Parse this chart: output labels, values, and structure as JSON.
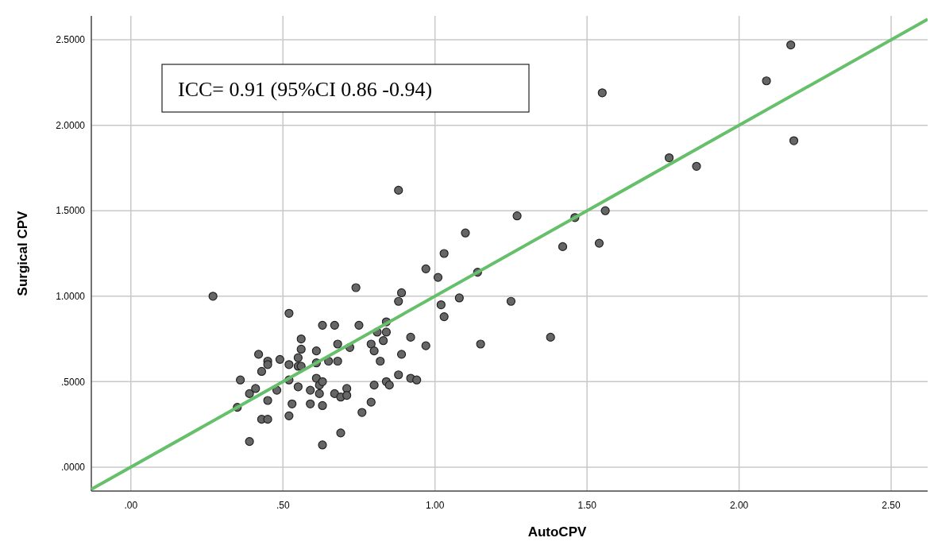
{
  "chart_data": {
    "type": "scatter",
    "xlabel": "AutoCPV",
    "ylabel": "Surgical CPV",
    "annotations": [
      "ICC= 0.91 (95%CI 0.86 -0.94)"
    ],
    "xlim": [
      -0.13,
      2.62
    ],
    "ylim": [
      -0.14,
      2.64
    ],
    "xticks": [
      {
        "value": 0,
        "label": ".00"
      },
      {
        "value": 0.5,
        "label": ".50"
      },
      {
        "value": 1,
        "label": "1.00"
      },
      {
        "value": 1.5,
        "label": "1.50"
      },
      {
        "value": 2,
        "label": "2.00"
      },
      {
        "value": 2.5,
        "label": "2.50"
      }
    ],
    "yticks": [
      {
        "value": 0,
        "label": ".0000"
      },
      {
        "value": 0.5,
        "label": ".5000"
      },
      {
        "value": 1,
        "label": "1.0000"
      },
      {
        "value": 1.5,
        "label": "1.5000"
      },
      {
        "value": 2,
        "label": "2.0000"
      },
      {
        "value": 2.5,
        "label": "2.5000"
      }
    ],
    "grid": true,
    "marker": "circle",
    "series": [
      {
        "color": "#666666",
        "x": [
          0.27,
          0.36,
          0.35,
          0.39,
          0.39,
          0.41,
          0.42,
          0.43,
          0.43,
          0.45,
          0.45,
          0.45,
          0.45,
          0.48,
          0.49,
          0.52,
          0.52,
          0.52,
          0.52,
          0.53,
          0.55,
          0.55,
          0.55,
          0.56,
          0.56,
          0.56,
          0.59,
          0.59,
          0.61,
          0.61,
          0.61,
          0.62,
          0.62,
          0.63,
          0.63,
          0.63,
          0.63,
          0.65,
          0.67,
          0.67,
          0.68,
          0.68,
          0.69,
          0.69,
          0.71,
          0.71,
          0.72,
          0.74,
          0.75,
          0.76,
          0.79,
          0.79,
          0.8,
          0.8,
          0.81,
          0.82,
          0.83,
          0.84,
          0.84,
          0.84,
          0.85,
          0.88,
          0.88,
          0.88,
          0.89,
          0.89,
          0.92,
          0.92,
          0.94,
          0.97,
          0.97,
          1.01,
          1.02,
          1.03,
          1.03,
          1.08,
          1.1,
          1.14,
          1.15,
          1.25,
          1.27,
          1.38,
          1.42,
          1.46,
          1.54,
          1.55,
          1.56,
          1.77,
          1.86,
          2.09,
          2.17,
          2.18
        ],
        "values": [
          1.0,
          0.51,
          0.35,
          0.15,
          0.43,
          0.46,
          0.66,
          0.56,
          0.28,
          0.62,
          0.6,
          0.39,
          0.28,
          0.45,
          0.63,
          0.9,
          0.6,
          0.51,
          0.3,
          0.37,
          0.64,
          0.59,
          0.47,
          0.75,
          0.69,
          0.59,
          0.45,
          0.37,
          0.68,
          0.61,
          0.52,
          0.48,
          0.43,
          0.83,
          0.5,
          0.36,
          0.13,
          0.62,
          0.83,
          0.43,
          0.72,
          0.62,
          0.41,
          0.2,
          0.46,
          0.42,
          0.7,
          1.05,
          0.83,
          0.32,
          0.72,
          0.38,
          0.68,
          0.48,
          0.79,
          0.62,
          0.74,
          0.5,
          0.85,
          0.79,
          0.48,
          0.54,
          1.62,
          0.97,
          1.02,
          0.66,
          0.76,
          0.52,
          0.51,
          1.16,
          0.71,
          1.11,
          0.95,
          1.25,
          0.88,
          0.99,
          1.37,
          1.14,
          0.72,
          0.97,
          1.47,
          0.76,
          1.29,
          1.46,
          1.31,
          2.19,
          1.5,
          1.81,
          1.76,
          2.26,
          2.47,
          1.91
        ]
      },
      {
        "type": "line",
        "color": "#66bf6a",
        "marker": "none",
        "x": [
          -0.13,
          2.62
        ],
        "values": [
          -0.13,
          2.62
        ]
      }
    ]
  }
}
